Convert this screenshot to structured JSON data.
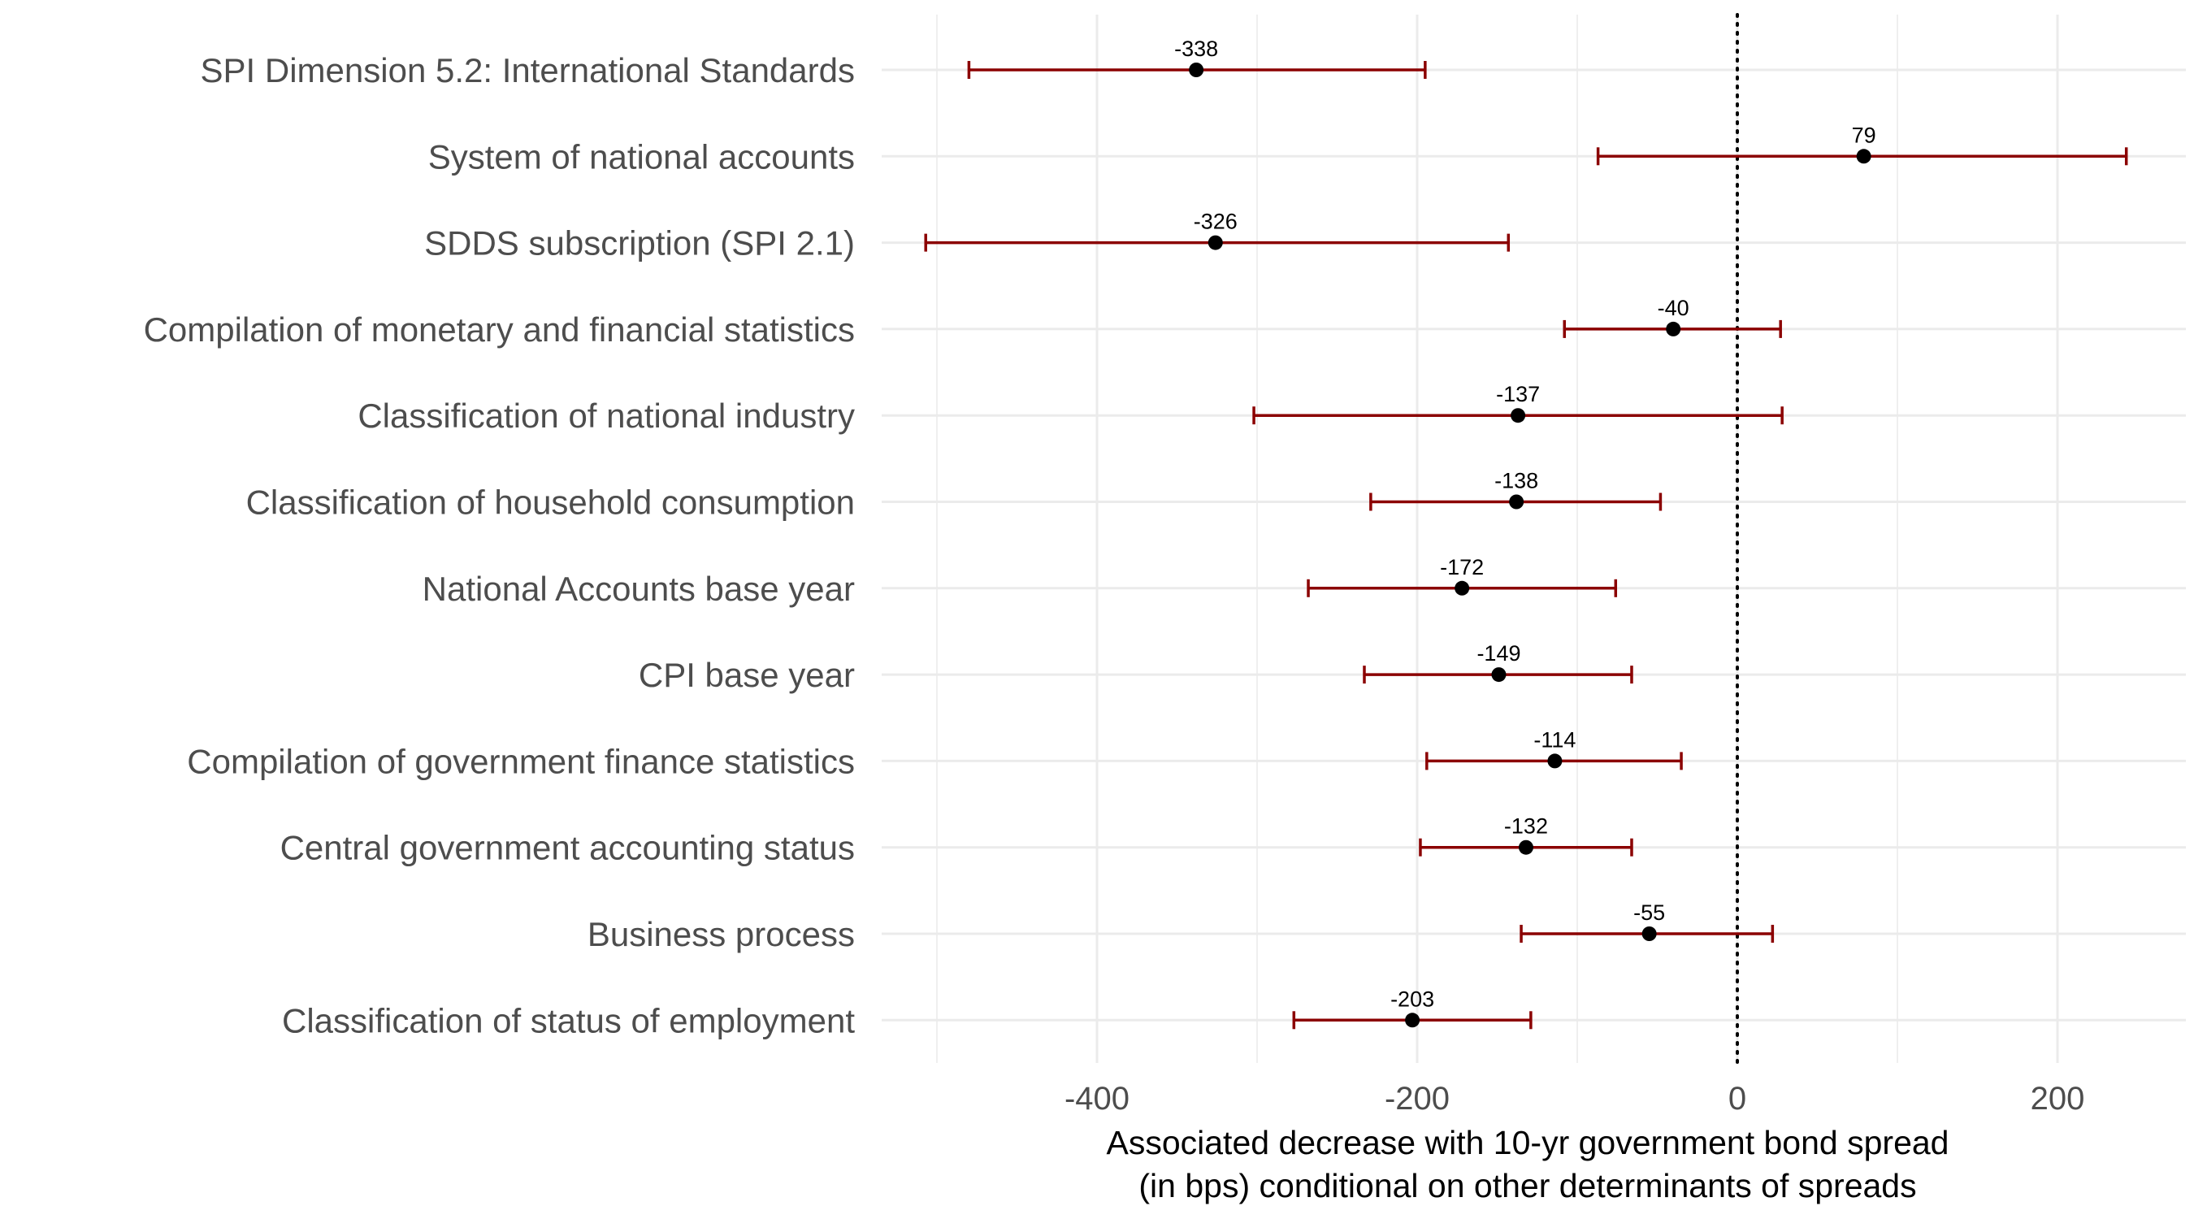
{
  "chart_data": {
    "type": "scatter",
    "subtype": "dot-whisker",
    "title": "",
    "xlabel_lines": [
      "Associated decrease with 10-yr government bond spread",
      "(in bps) conditional on other determinants of spreads"
    ],
    "ylabel": "",
    "xlim": [
      -525,
      265
    ],
    "x_ticks": [
      -400,
      -200,
      0,
      200
    ],
    "x_tick_labels": [
      "-400",
      "-200",
      "0",
      "200"
    ],
    "reference_line": 0,
    "grid": true,
    "legend": "none",
    "colors": {
      "whisker": "#8b0000",
      "point": "#000000",
      "grid": "#ebebeb",
      "reference": "#000000"
    },
    "categories": [
      "SPI Dimension 5.2: International Standards",
      "System of national accounts",
      "SDDS subscription (SPI 2.1)",
      "Compilation of monetary and financial statistics",
      "Classification of national industry",
      "Classification of household consumption",
      "National Accounts base year",
      "CPI base year",
      "Compilation of government finance statistics",
      "Central government accounting status",
      "Business process",
      "Classification of status of employment"
    ],
    "estimates": [
      -338,
      79,
      -326,
      -40,
      -137,
      -138,
      -172,
      -149,
      -114,
      -132,
      -55,
      -203
    ],
    "value_labels": [
      "-338",
      "79",
      "-326",
      "-40",
      "-137",
      "-138",
      "-172",
      "-149",
      "-114",
      "-132",
      "-55",
      "-203"
    ],
    "ci_low": [
      -480,
      -87,
      -507,
      -108,
      -302,
      -229,
      -268,
      -233,
      -194,
      -198,
      -135,
      -277
    ],
    "ci_high": [
      -195,
      243,
      -143,
      27,
      28,
      -48,
      -76,
      -66,
      -35,
      -66,
      22,
      -129
    ]
  }
}
